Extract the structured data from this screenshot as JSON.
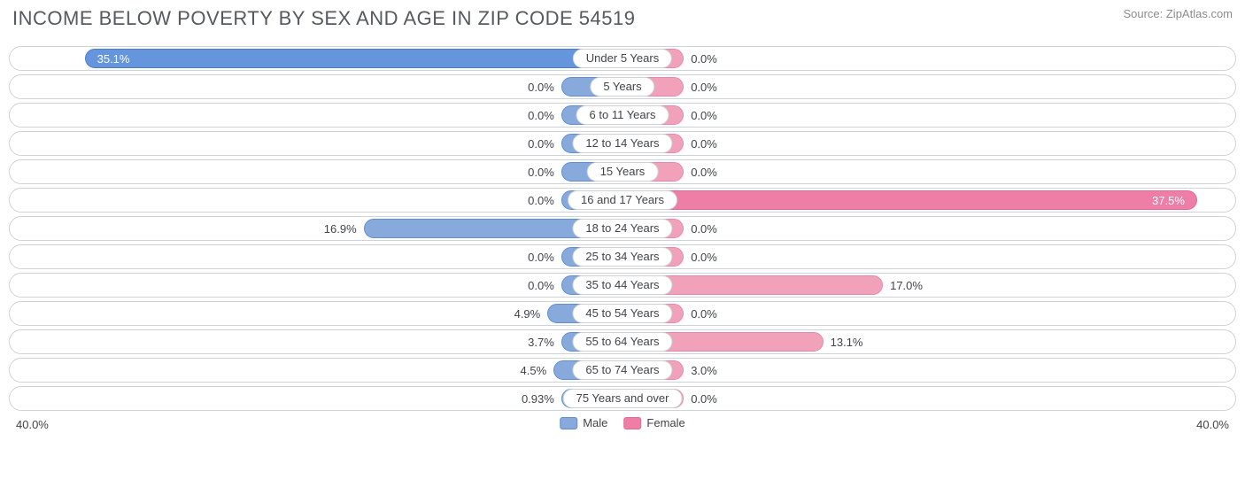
{
  "title": "INCOME BELOW POVERTY BY SEX AND AGE IN ZIP CODE 54519",
  "source": "Source: ZipAtlas.com",
  "chart": {
    "type": "diverging-bar",
    "axis_max": 40.0,
    "axis_label_left": "40.0%",
    "axis_label_right": "40.0%",
    "min_bar_pct": 5.0,
    "value_label_inset": 8,
    "colors": {
      "male_fill": "#87a9db",
      "male_stroke": "#5e8fd6",
      "male_highlight_fill": "#6596dd",
      "male_highlight_stroke": "#4b7fca",
      "female_fill": "#f2a1bb",
      "female_stroke": "#ed87a9",
      "female_highlight_fill": "#ef7ea7",
      "female_highlight_stroke": "#e86694",
      "row_border": "#cfd3d7",
      "text": "#404448",
      "background": "#ffffff"
    },
    "legend": [
      {
        "label": "Male",
        "fill": "#87a9db",
        "stroke": "#5e8fd6"
      },
      {
        "label": "Female",
        "fill": "#ef7ea7",
        "stroke": "#e86694"
      }
    ],
    "rows": [
      {
        "category": "Under 5 Years",
        "male": 35.1,
        "male_label": "35.1%",
        "female": 0.0,
        "female_label": "0.0%",
        "male_hl": true,
        "female_hl": false
      },
      {
        "category": "5 Years",
        "male": 0.0,
        "male_label": "0.0%",
        "female": 0.0,
        "female_label": "0.0%",
        "male_hl": false,
        "female_hl": false
      },
      {
        "category": "6 to 11 Years",
        "male": 0.0,
        "male_label": "0.0%",
        "female": 0.0,
        "female_label": "0.0%",
        "male_hl": false,
        "female_hl": false
      },
      {
        "category": "12 to 14 Years",
        "male": 0.0,
        "male_label": "0.0%",
        "female": 0.0,
        "female_label": "0.0%",
        "male_hl": false,
        "female_hl": false
      },
      {
        "category": "15 Years",
        "male": 0.0,
        "male_label": "0.0%",
        "female": 0.0,
        "female_label": "0.0%",
        "male_hl": false,
        "female_hl": false
      },
      {
        "category": "16 and 17 Years",
        "male": 0.0,
        "male_label": "0.0%",
        "female": 37.5,
        "female_label": "37.5%",
        "male_hl": false,
        "female_hl": true
      },
      {
        "category": "18 to 24 Years",
        "male": 16.9,
        "male_label": "16.9%",
        "female": 0.0,
        "female_label": "0.0%",
        "male_hl": false,
        "female_hl": false
      },
      {
        "category": "25 to 34 Years",
        "male": 0.0,
        "male_label": "0.0%",
        "female": 0.0,
        "female_label": "0.0%",
        "male_hl": false,
        "female_hl": false
      },
      {
        "category": "35 to 44 Years",
        "male": 0.0,
        "male_label": "0.0%",
        "female": 17.0,
        "female_label": "17.0%",
        "male_hl": false,
        "female_hl": false
      },
      {
        "category": "45 to 54 Years",
        "male": 4.9,
        "male_label": "4.9%",
        "female": 0.0,
        "female_label": "0.0%",
        "male_hl": false,
        "female_hl": false
      },
      {
        "category": "55 to 64 Years",
        "male": 3.7,
        "male_label": "3.7%",
        "female": 13.1,
        "female_label": "13.1%",
        "male_hl": false,
        "female_hl": false
      },
      {
        "category": "65 to 74 Years",
        "male": 4.5,
        "male_label": "4.5%",
        "female": 3.0,
        "female_label": "3.0%",
        "male_hl": false,
        "female_hl": false
      },
      {
        "category": "75 Years and over",
        "male": 0.93,
        "male_label": "0.93%",
        "female": 0.0,
        "female_label": "0.0%",
        "male_hl": false,
        "female_hl": false
      }
    ]
  }
}
